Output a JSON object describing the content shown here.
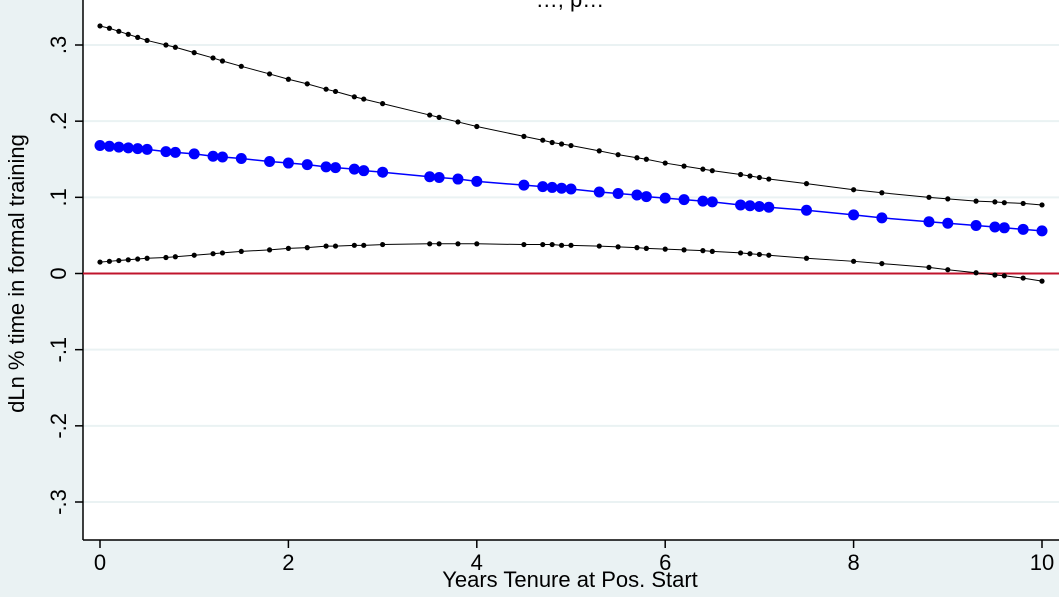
{
  "chart_data": {
    "type": "line",
    "title": "…, p…",
    "xlabel": "Years Tenure at Pos. Start",
    "ylabel": "dLn % time in formal training",
    "xlim": [
      0,
      10
    ],
    "ylim": [
      -0.3,
      0.3
    ],
    "x_ticks": [
      0,
      2,
      4,
      6,
      8,
      10
    ],
    "x_tick_labels": [
      "0",
      "2",
      "4",
      "6",
      "8",
      "10"
    ],
    "y_ticks": [
      -0.3,
      -0.2,
      -0.1,
      0,
      0.1,
      0.2,
      0.3
    ],
    "y_tick_labels": [
      "-.3",
      "-.2",
      "-.1",
      "0",
      ".1",
      ".2",
      ".3"
    ],
    "grid": true,
    "reference_line": {
      "y": 0,
      "color": "#c0142c"
    },
    "x": [
      0,
      0.1,
      0.2,
      0.3,
      0.4,
      0.5,
      0.7,
      0.8,
      1.0,
      1.2,
      1.3,
      1.5,
      1.8,
      2.0,
      2.2,
      2.4,
      2.5,
      2.7,
      2.8,
      3.0,
      3.5,
      3.6,
      3.8,
      4.0,
      4.5,
      4.7,
      4.8,
      4.9,
      5.0,
      5.3,
      5.5,
      5.7,
      5.8,
      6.0,
      6.2,
      6.4,
      6.5,
      6.8,
      6.9,
      7.0,
      7.1,
      7.5,
      8.0,
      8.3,
      8.8,
      9.0,
      9.3,
      9.5,
      9.6,
      9.8,
      10.0
    ],
    "series": [
      {
        "values": [
          0.168,
          0.167,
          0.166,
          0.165,
          0.164,
          0.163,
          0.16,
          0.159,
          0.157,
          0.154,
          0.153,
          0.151,
          0.147,
          0.145,
          0.143,
          0.14,
          0.139,
          0.137,
          0.135,
          0.133,
          0.127,
          0.126,
          0.124,
          0.121,
          0.116,
          0.114,
          0.113,
          0.112,
          0.111,
          0.107,
          0.105,
          0.103,
          0.101,
          0.099,
          0.097,
          0.095,
          0.094,
          0.09,
          0.089,
          0.088,
          0.087,
          0.083,
          0.077,
          0.073,
          0.068,
          0.066,
          0.063,
          0.061,
          0.06,
          0.058,
          0.056
        ]
      },
      {
        "values": [
          0.325,
          0.322,
          0.318,
          0.314,
          0.31,
          0.306,
          0.3,
          0.297,
          0.29,
          0.283,
          0.279,
          0.272,
          0.262,
          0.255,
          0.249,
          0.242,
          0.239,
          0.232,
          0.229,
          0.223,
          0.208,
          0.205,
          0.199,
          0.193,
          0.18,
          0.175,
          0.172,
          0.17,
          0.168,
          0.161,
          0.156,
          0.152,
          0.15,
          0.145,
          0.141,
          0.137,
          0.135,
          0.13,
          0.128,
          0.126,
          0.124,
          0.118,
          0.11,
          0.106,
          0.1,
          0.098,
          0.095,
          0.094,
          0.093,
          0.092,
          0.09
        ]
      },
      {
        "values": [
          0.015,
          0.016,
          0.017,
          0.018,
          0.019,
          0.02,
          0.021,
          0.022,
          0.024,
          0.026,
          0.027,
          0.029,
          0.031,
          0.033,
          0.034,
          0.036,
          0.036,
          0.037,
          0.037,
          0.038,
          0.039,
          0.039,
          0.039,
          0.039,
          0.038,
          0.038,
          0.038,
          0.037,
          0.037,
          0.036,
          0.035,
          0.034,
          0.033,
          0.032,
          0.031,
          0.03,
          0.029,
          0.027,
          0.026,
          0.025,
          0.024,
          0.02,
          0.016,
          0.013,
          0.008,
          0.005,
          0.001,
          -0.002,
          -0.003,
          -0.006,
          -0.01
        ]
      }
    ],
    "colors": {
      "background": "#eaf2f3",
      "plot_bg": "#ffffff",
      "grid": "#eaf2f3",
      "fit": "#0000ff",
      "ci": "#000000",
      "zero_line": "#c0142c"
    }
  }
}
